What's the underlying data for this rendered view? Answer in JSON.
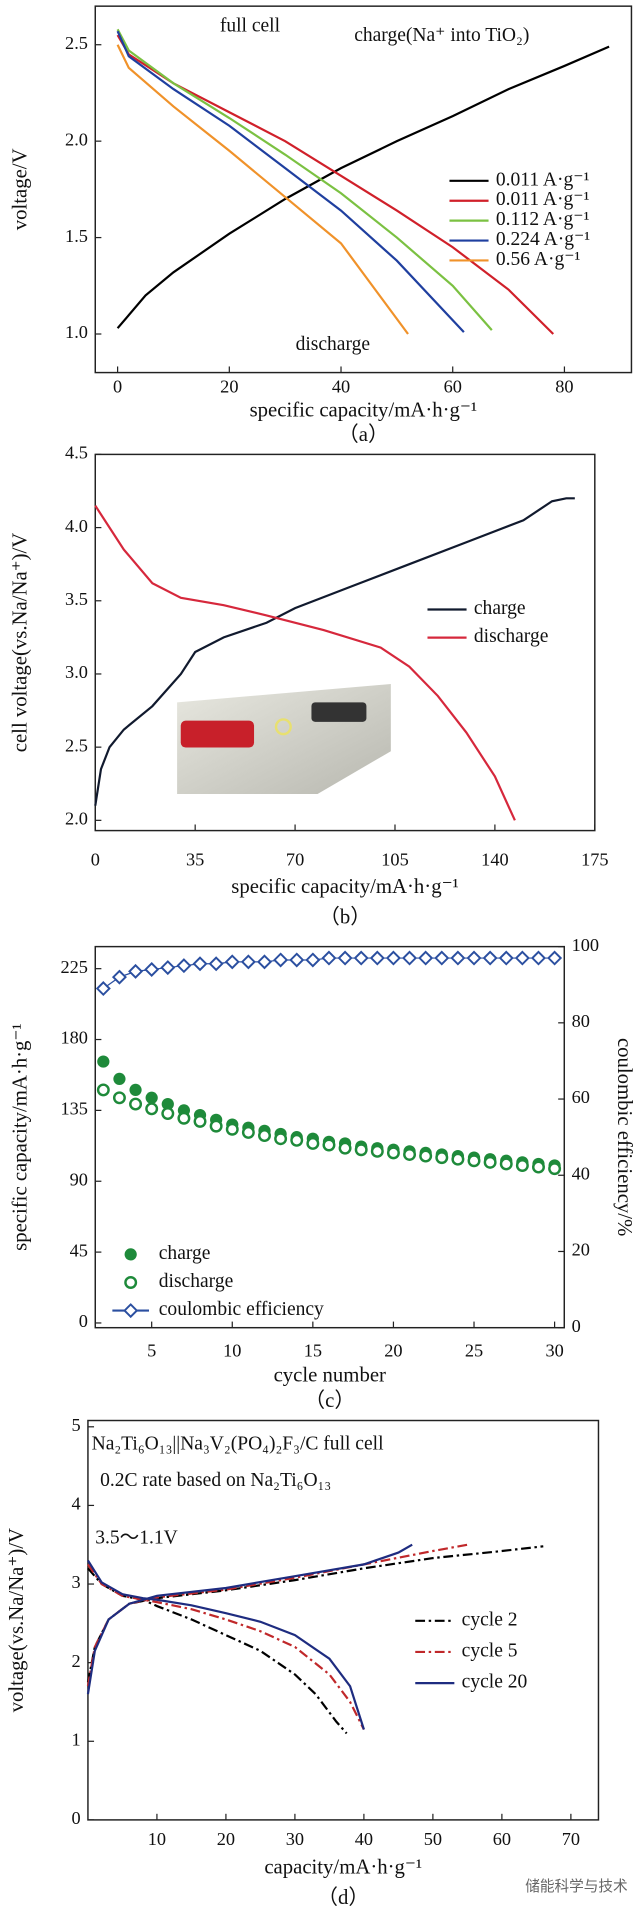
{
  "chart_data": [
    {
      "type": "line",
      "caption": "（a）",
      "xlabel": "specific capacity/mA·h·g⁻¹",
      "ylabel": "voltage/V",
      "xlim": [
        -4,
        92
      ],
      "ylim": [
        0.8,
        2.7
      ],
      "xticks": [
        0,
        20,
        40,
        60,
        80
      ],
      "yticks": [
        {
          "value": 1,
          "label": "1.0"
        },
        {
          "value": 1.5,
          "label": "1.5"
        },
        {
          "value": 2,
          "label": "2.0"
        },
        {
          "value": 2.5,
          "label": "2.5"
        }
      ],
      "annotations": [
        "full cell",
        "charge(Na⁺ into TiO₂)",
        "discharge"
      ],
      "series": [
        {
          "name": "0.011 A·g⁻¹",
          "color": "#000000",
          "x": [
            0,
            5,
            10,
            20,
            30,
            40,
            50,
            60,
            70,
            80,
            88
          ],
          "values": [
            1.03,
            1.2,
            1.32,
            1.52,
            1.7,
            1.86,
            2.0,
            2.13,
            2.27,
            2.39,
            2.49
          ]
        },
        {
          "name": "0.011 A·g⁻¹",
          "color": "#d0202a",
          "x": [
            0,
            2,
            10,
            20,
            30,
            40,
            50,
            60,
            70,
            78
          ],
          "values": [
            2.55,
            2.45,
            2.3,
            2.15,
            2.0,
            1.82,
            1.64,
            1.45,
            1.23,
            1.0
          ]
        },
        {
          "name": "0.112 A·g⁻¹",
          "color": "#7bc142",
          "x": [
            0,
            2,
            10,
            20,
            30,
            40,
            50,
            60,
            67
          ],
          "values": [
            2.58,
            2.47,
            2.3,
            2.12,
            1.93,
            1.73,
            1.5,
            1.25,
            1.02
          ]
        },
        {
          "name": "0.224 A·g⁻¹",
          "color": "#1f3f9f",
          "x": [
            0,
            2,
            10,
            20,
            30,
            40,
            50,
            62
          ],
          "values": [
            2.57,
            2.44,
            2.27,
            2.08,
            1.86,
            1.64,
            1.38,
            1.01
          ]
        },
        {
          "name": "0.56 A·g⁻¹",
          "color": "#f0922a",
          "x": [
            0,
            2,
            10,
            20,
            30,
            40,
            52
          ],
          "values": [
            2.5,
            2.38,
            2.18,
            1.95,
            1.71,
            1.47,
            1.0
          ]
        }
      ]
    },
    {
      "type": "line",
      "caption": "（b）",
      "xlabel": "specific capacity/mA·h·g⁻¹",
      "ylabel": "cell voltage(vs.Na/Na⁺)/V",
      "xlim": [
        0,
        175
      ],
      "ylim": [
        1.93,
        4.5
      ],
      "xticks": [
        0,
        35,
        70,
        105,
        140,
        175
      ],
      "yticks": [
        {
          "value": 2,
          "label": "2.0"
        },
        {
          "value": 2.5,
          "label": "2.5"
        },
        {
          "value": 3,
          "label": "3.0"
        },
        {
          "value": 3.5,
          "label": "3.5"
        },
        {
          "value": 4,
          "label": "4.0"
        },
        {
          "value": 4.5,
          "label": "4.5"
        }
      ],
      "series": [
        {
          "name": "charge",
          "color": "#111a2e",
          "x": [
            0,
            2,
            5,
            10,
            20,
            30,
            35,
            45,
            60,
            70,
            90,
            110,
            130,
            150,
            160,
            165,
            168
          ],
          "values": [
            2.1,
            2.35,
            2.5,
            2.62,
            2.78,
            3.0,
            3.15,
            3.25,
            3.35,
            3.45,
            3.6,
            3.75,
            3.9,
            4.05,
            4.18,
            4.2,
            4.2
          ]
        },
        {
          "name": "discharge",
          "color": "#d6283c",
          "x": [
            0,
            5,
            10,
            20,
            30,
            45,
            60,
            80,
            100,
            110,
            120,
            130,
            140,
            147
          ],
          "values": [
            4.15,
            4.0,
            3.85,
            3.62,
            3.52,
            3.47,
            3.4,
            3.3,
            3.18,
            3.05,
            2.85,
            2.6,
            2.3,
            2.0
          ]
        }
      ]
    },
    {
      "type": "scatter",
      "caption": "（c）",
      "xlabel": "cycle number",
      "ylabel": "specific capacity/mA·h·g⁻¹",
      "y2label": "coulombic efficiency/%",
      "xlim": [
        1.5,
        30.6
      ],
      "ylim": [
        -3,
        239
      ],
      "y2lim": [
        0,
        100
      ],
      "xticks": [
        5,
        10,
        15,
        20,
        25,
        30
      ],
      "yticks": [
        0,
        45,
        90,
        135,
        180,
        225
      ],
      "y2ticks": [
        0,
        20,
        40,
        60,
        80,
        100
      ],
      "x": [
        2,
        3,
        4,
        5,
        6,
        7,
        8,
        9,
        10,
        11,
        12,
        13,
        14,
        15,
        16,
        17,
        18,
        19,
        20,
        21,
        22,
        23,
        24,
        25,
        26,
        27,
        28,
        29,
        30
      ],
      "series": [
        {
          "name": "charge",
          "color": "#1e8a3a",
          "marker": "filled-circle",
          "values": [
            166,
            155,
            148,
            143,
            139,
            135,
            132,
            129,
            126,
            124,
            122,
            120,
            118,
            117,
            115,
            114,
            112,
            111,
            110,
            109,
            108,
            107,
            106,
            105,
            104,
            103,
            102,
            101,
            100
          ]
        },
        {
          "name": "discharge",
          "color": "#1e8a3a",
          "marker": "open-circle",
          "values": [
            148,
            143,
            139,
            136,
            133,
            130,
            128,
            125,
            123,
            121,
            119,
            117,
            116,
            114,
            113,
            111,
            110,
            109,
            108,
            107,
            106,
            105,
            104,
            103,
            102,
            101,
            100,
            99,
            98
          ]
        },
        {
          "name": "coulombic efficiency",
          "color": "#2b4fa0",
          "marker": "open-diamond",
          "axis": "y2",
          "values": [
            89,
            92,
            93.5,
            94,
            94.5,
            95,
            95.5,
            95.5,
            96,
            96,
            96,
            96.5,
            96.5,
            96.5,
            97,
            97,
            97,
            97,
            97,
            97,
            97,
            97,
            97,
            97,
            97,
            97,
            97,
            97,
            97
          ]
        }
      ]
    },
    {
      "type": "line",
      "caption": "（d）",
      "xlabel": "capacity/mA·h·g⁻¹",
      "ylabel": "voltage(vs.Na/Na⁺)/V",
      "xlim": [
        0,
        74
      ],
      "ylim": [
        0,
        5.08
      ],
      "xticks": [
        10,
        20,
        30,
        40,
        50,
        60,
        70
      ],
      "yticks": [
        0,
        1,
        2,
        3,
        4,
        5
      ],
      "annotations": [
        "Na₂Ti₆O₁₃||Na₃V₂(PO₄)₂F₃/C full cell",
        "0.2C rate based on Na₂Ti₆O₁₃",
        "3.5～1.1V"
      ],
      "series": [
        {
          "name": "cycle 2",
          "color": "#000000",
          "linestyle": "dashdot",
          "x": [
            0,
            2,
            5,
            8,
            10,
            15,
            20,
            25,
            30,
            33,
            36,
            37.5,
            null,
            0,
            1,
            3,
            6,
            10,
            20,
            30,
            40,
            50,
            60,
            66
          ],
          "values": [
            3.2,
            3.0,
            2.85,
            2.8,
            2.72,
            2.55,
            2.35,
            2.15,
            1.85,
            1.6,
            1.25,
            1.1,
            null,
            1.75,
            2.2,
            2.55,
            2.75,
            2.82,
            2.92,
            3.05,
            3.2,
            3.33,
            3.42,
            3.48
          ]
        },
        {
          "name": "cycle 5",
          "color": "#c0282a",
          "linestyle": "dashdot",
          "x": [
            0,
            2,
            5,
            8,
            10,
            15,
            20,
            25,
            30,
            35,
            38,
            40,
            null,
            0,
            1,
            3,
            6,
            10,
            20,
            30,
            40,
            50,
            55
          ],
          "values": [
            3.25,
            3.0,
            2.85,
            2.8,
            2.77,
            2.68,
            2.55,
            2.4,
            2.2,
            1.85,
            1.5,
            1.15,
            null,
            1.7,
            2.2,
            2.55,
            2.75,
            2.83,
            2.93,
            3.08,
            3.25,
            3.42,
            3.5
          ]
        },
        {
          "name": "cycle 20",
          "color": "#1e2c80",
          "linestyle": "solid",
          "x": [
            0,
            2,
            5,
            8,
            10,
            15,
            20,
            25,
            30,
            35,
            38,
            40,
            null,
            0,
            1,
            3,
            6,
            10,
            20,
            30,
            40,
            45,
            47
          ],
          "values": [
            3.3,
            3.02,
            2.87,
            2.82,
            2.8,
            2.73,
            2.63,
            2.52,
            2.35,
            2.05,
            1.7,
            1.15,
            null,
            1.6,
            2.15,
            2.55,
            2.75,
            2.85,
            2.95,
            3.1,
            3.25,
            3.4,
            3.5
          ]
        }
      ]
    }
  ],
  "watermark": "储能科学与技术"
}
